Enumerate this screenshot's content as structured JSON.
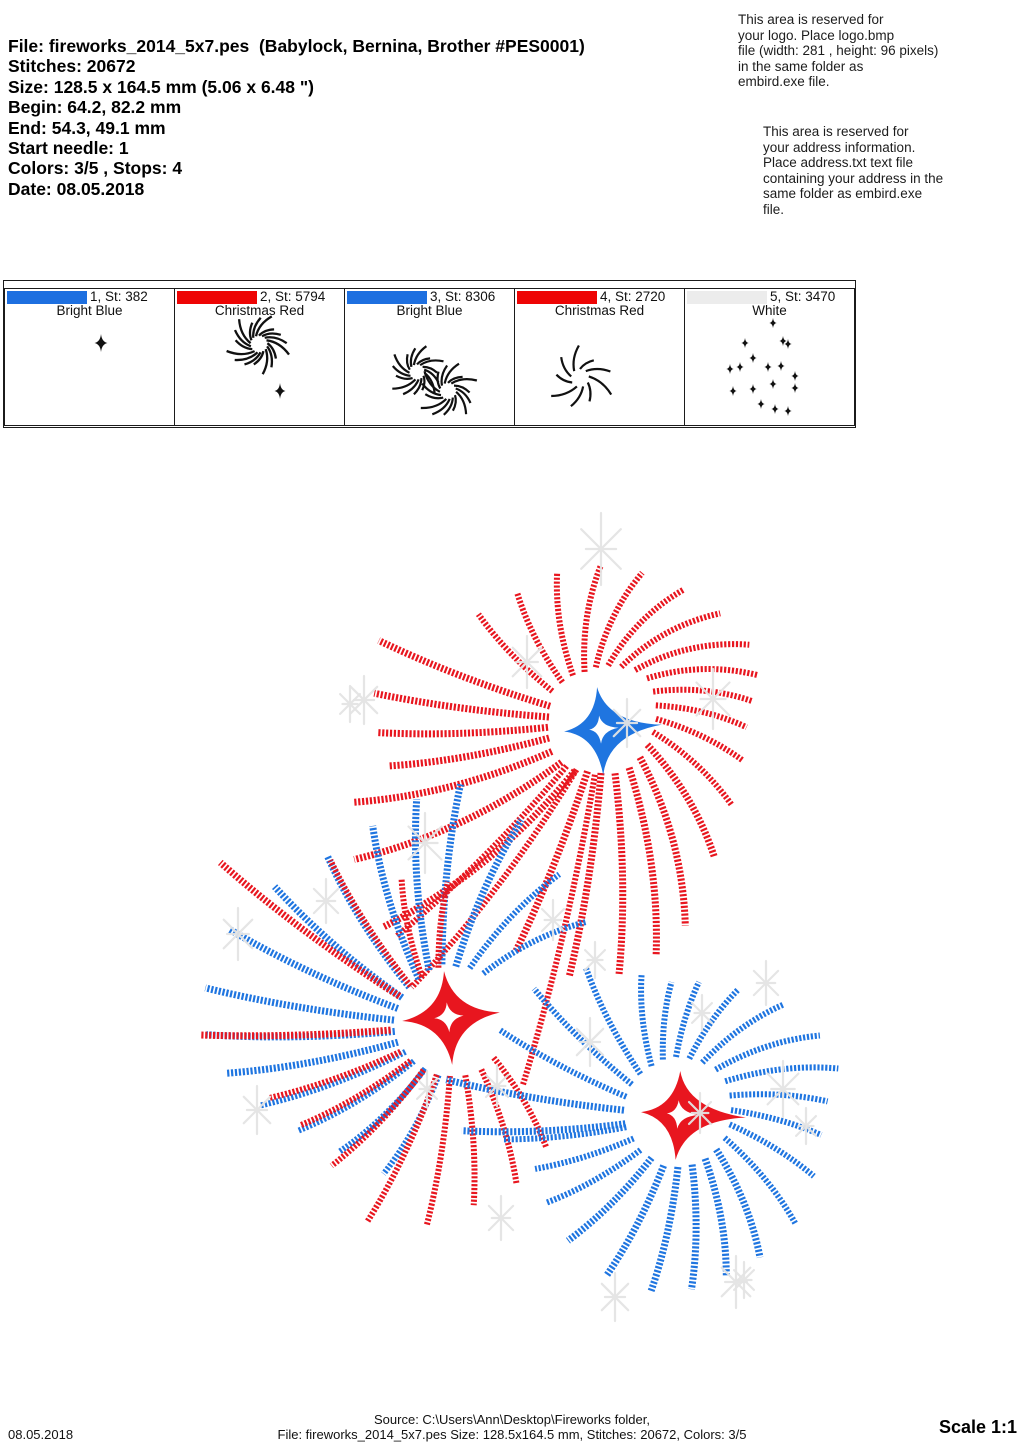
{
  "header": {
    "lines": [
      "File: fireworks_2014_5x7.pes  (Babylock, Bernina, Brother #PES0001)",
      "Stitches: 20672",
      "Size: 128.5 x 164.5 mm (5.06 x 6.48 \")",
      "Begin: 64.2, 82.2 mm",
      "End: 54.3, 49.1 mm",
      "Start needle: 1",
      "Colors: 3/5 , Stops: 4",
      "Date: 08.05.2018"
    ]
  },
  "logo_note": {
    "lines": [
      "This area is reserved for",
      "your logo. Place logo.bmp",
      "file (width: 281 , height: 96 pixels)",
      "in the same folder as",
      "embird.exe file."
    ]
  },
  "address_note": {
    "lines": [
      "This area is reserved for",
      "your address information.",
      "Place address.txt text file",
      "containing your address in the",
      "same folder as embird.exe",
      "file."
    ]
  },
  "color_sequence": {
    "cells": [
      {
        "label": "1, St: 382",
        "name": "Bright Blue",
        "bar": "#1d6fe0",
        "thumb": "star"
      },
      {
        "label": "2, St: 5794",
        "name": "Christmas Red",
        "bar": "#ee0404",
        "thumb": "burst-dense"
      },
      {
        "label": "3, St: 8306",
        "name": "Bright Blue",
        "bar": "#1d6fe0",
        "thumb": "burst-double"
      },
      {
        "label": "4, St: 2720",
        "name": "Christmas Red",
        "bar": "#ee0404",
        "thumb": "burst-sparse"
      },
      {
        "label": "5, St: 3470",
        "name": "White",
        "bar": "#ececec",
        "thumb": "stars-scatter"
      }
    ]
  },
  "footer": {
    "date": "08.05.2018",
    "source_line": "Source: C:\\Users\\Ann\\Desktop\\Fireworks folder,",
    "file_line": "File: fireworks_2014_5x7.pes Size: 128.5x164.5 mm, Stitches: 20672, Colors: 3/5",
    "scale": "Scale 1:1"
  },
  "design": {
    "bright_blue": "#1f75e0",
    "christmas_red": "#e8161f",
    "white_thread": "#e4e4e4",
    "thumb_ink": "#111111"
  }
}
